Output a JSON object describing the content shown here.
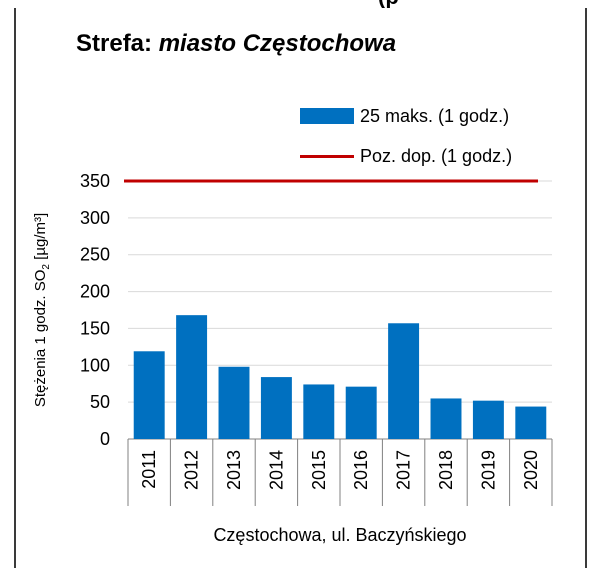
{
  "cropped_header_text": "(p",
  "chart_data": {
    "type": "bar",
    "title_prefix": "Strefa: ",
    "title_italic": "miasto Częstochowa",
    "categories": [
      "2011",
      "2012",
      "2013",
      "2014",
      "2015",
      "2016",
      "2017",
      "2018",
      "2019",
      "2020"
    ],
    "series": [
      {
        "name": "25 maks. (1 godz.)",
        "values": [
          119,
          168,
          98,
          84,
          74,
          71,
          157,
          55,
          52,
          44
        ],
        "color": "#0070c0"
      }
    ],
    "reference_line": {
      "name": "Poz. dop. (1 godz.)",
      "value": 350,
      "color": "#c00000"
    },
    "ylabel_main": "Stężenia 1 godz. SO",
    "ylabel_sub": "2",
    "ylabel_unit": " [µg/m³]",
    "xlabel": "Częstochowa, ul. Baczyńskiego",
    "yticks": [
      0,
      50,
      100,
      150,
      200,
      250,
      300,
      350
    ],
    "ylim": [
      0,
      350
    ],
    "grid": true,
    "legend_position": "top-right"
  }
}
